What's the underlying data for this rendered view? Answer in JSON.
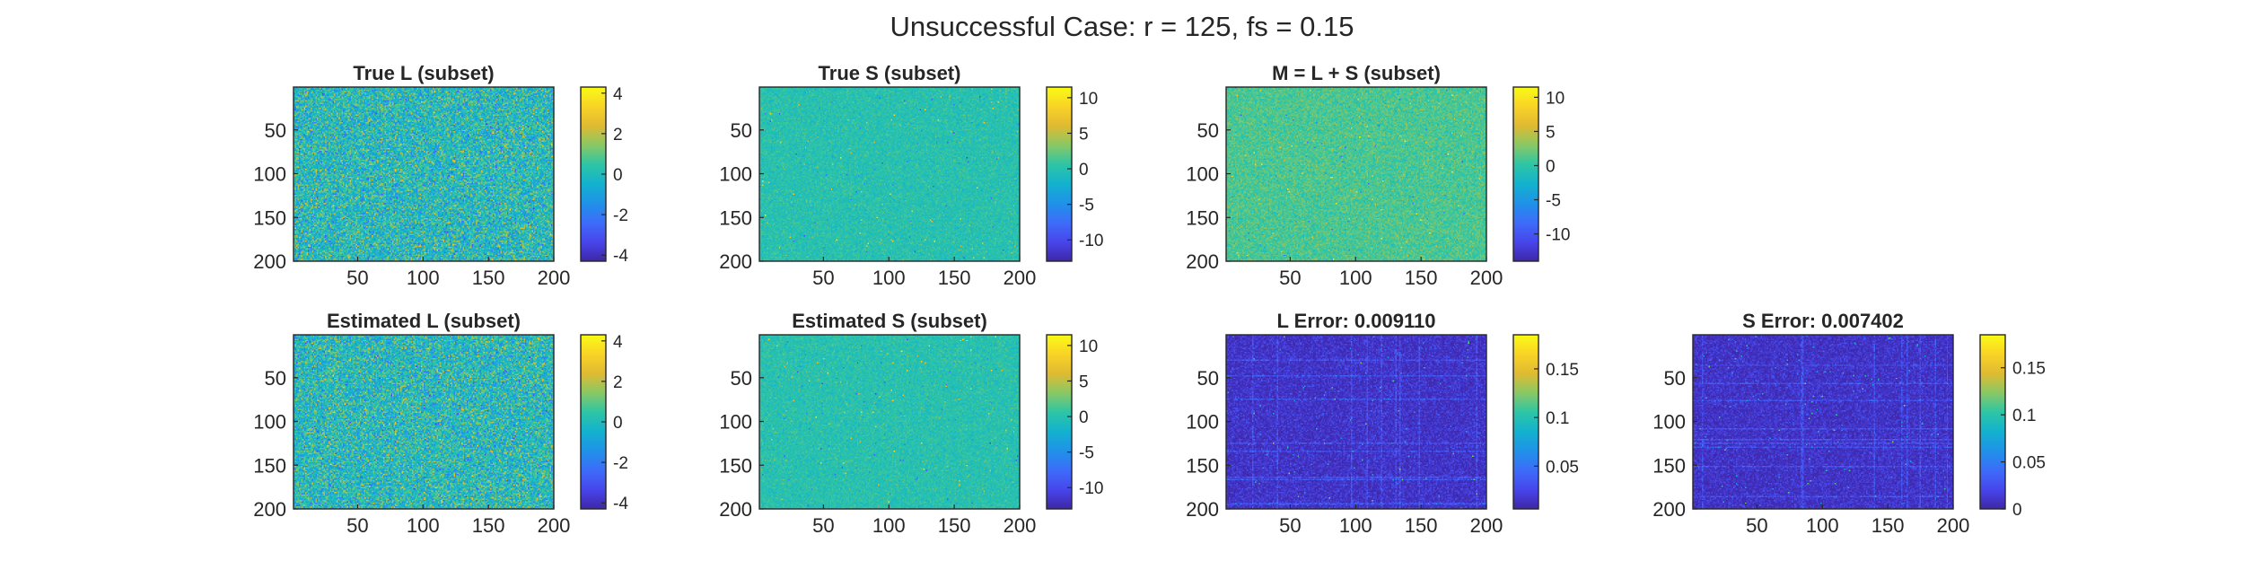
{
  "suptitle": "Unsuccessful Case: r = 125, fs = 0.15",
  "colormap": "parula",
  "colormap_stops": [
    "#3e26a8",
    "#4746eb",
    "#3d6cf9",
    "#1f92e8",
    "#12b2ce",
    "#2ec5a5",
    "#8ac865",
    "#dfba31",
    "#f9d326",
    "#f9fb15"
  ],
  "chart_data": [
    {
      "type": "heatmap",
      "id": "true_l",
      "title": "True L (subset)",
      "xticks": [
        50,
        100,
        150,
        200
      ],
      "yticks": [
        50,
        100,
        150,
        200
      ],
      "xlim": [
        1,
        200
      ],
      "ylim": [
        1,
        200
      ],
      "clim": [
        -4.3,
        4.3
      ],
      "colorbar_ticks": [
        -4,
        -2,
        0,
        2,
        4
      ],
      "colorbar_tick_labels": [
        "-4",
        "-2",
        "0",
        "2",
        "4"
      ],
      "texture": "dense_noise"
    },
    {
      "type": "heatmap",
      "id": "true_s",
      "title": "True S (subset)",
      "xticks": [
        50,
        100,
        150,
        200
      ],
      "yticks": [
        50,
        100,
        150,
        200
      ],
      "xlim": [
        1,
        200
      ],
      "ylim": [
        1,
        200
      ],
      "clim": [
        -13,
        11.5
      ],
      "colorbar_ticks": [
        -10,
        -5,
        0,
        5,
        10
      ],
      "colorbar_tick_labels": [
        "-10",
        "-5",
        "0",
        "5",
        "10"
      ],
      "texture": "sparse_noise"
    },
    {
      "type": "heatmap",
      "id": "m",
      "title": "M = L + S (subset)",
      "xticks": [
        50,
        100,
        150,
        200
      ],
      "yticks": [
        50,
        100,
        150,
        200
      ],
      "xlim": [
        1,
        200
      ],
      "ylim": [
        1,
        200
      ],
      "clim": [
        -14,
        11.5
      ],
      "colorbar_ticks": [
        -10,
        -5,
        0,
        5,
        10
      ],
      "colorbar_tick_labels": [
        "-10",
        "-5",
        "0",
        "5",
        "10"
      ],
      "texture": "sum_noise"
    },
    {
      "type": "heatmap",
      "id": "est_l",
      "title": "Estimated L (subset)",
      "xticks": [
        50,
        100,
        150,
        200
      ],
      "yticks": [
        50,
        100,
        150,
        200
      ],
      "xlim": [
        1,
        200
      ],
      "ylim": [
        1,
        200
      ],
      "clim": [
        -4.3,
        4.3
      ],
      "colorbar_ticks": [
        -4,
        -2,
        0,
        2,
        4
      ],
      "colorbar_tick_labels": [
        "-4",
        "-2",
        "0",
        "2",
        "4"
      ],
      "texture": "dense_noise"
    },
    {
      "type": "heatmap",
      "id": "est_s",
      "title": "Estimated S (subset)",
      "xticks": [
        50,
        100,
        150,
        200
      ],
      "yticks": [
        50,
        100,
        150,
        200
      ],
      "xlim": [
        1,
        200
      ],
      "ylim": [
        1,
        200
      ],
      "clim": [
        -13,
        11.5
      ],
      "colorbar_ticks": [
        -10,
        -5,
        0,
        5,
        10
      ],
      "colorbar_tick_labels": [
        "-10",
        "-5",
        "0",
        "5",
        "10"
      ],
      "texture": "sparse_noise"
    },
    {
      "type": "heatmap",
      "id": "l_error",
      "title": "L Error: 0.009110",
      "xticks": [
        50,
        100,
        150,
        200
      ],
      "yticks": [
        50,
        100,
        150,
        200
      ],
      "xlim": [
        1,
        200
      ],
      "ylim": [
        1,
        200
      ],
      "clim": [
        0.006,
        0.185
      ],
      "colorbar_ticks": [
        0.05,
        0.1,
        0.15
      ],
      "colorbar_tick_labels": [
        "0.05",
        "0.1",
        "0.15"
      ],
      "texture": "error_grid"
    },
    {
      "type": "heatmap",
      "id": "s_error",
      "title": "S Error: 0.007402",
      "xticks": [
        50,
        100,
        150,
        200
      ],
      "yticks": [
        50,
        100,
        150,
        200
      ],
      "xlim": [
        1,
        200
      ],
      "ylim": [
        1,
        200
      ],
      "clim": [
        0,
        0.185
      ],
      "colorbar_ticks": [
        0,
        0.05,
        0.1,
        0.15
      ],
      "colorbar_tick_labels": [
        "0",
        "0.05",
        "0.1",
        "0.15"
      ],
      "texture": "error_grid"
    }
  ]
}
